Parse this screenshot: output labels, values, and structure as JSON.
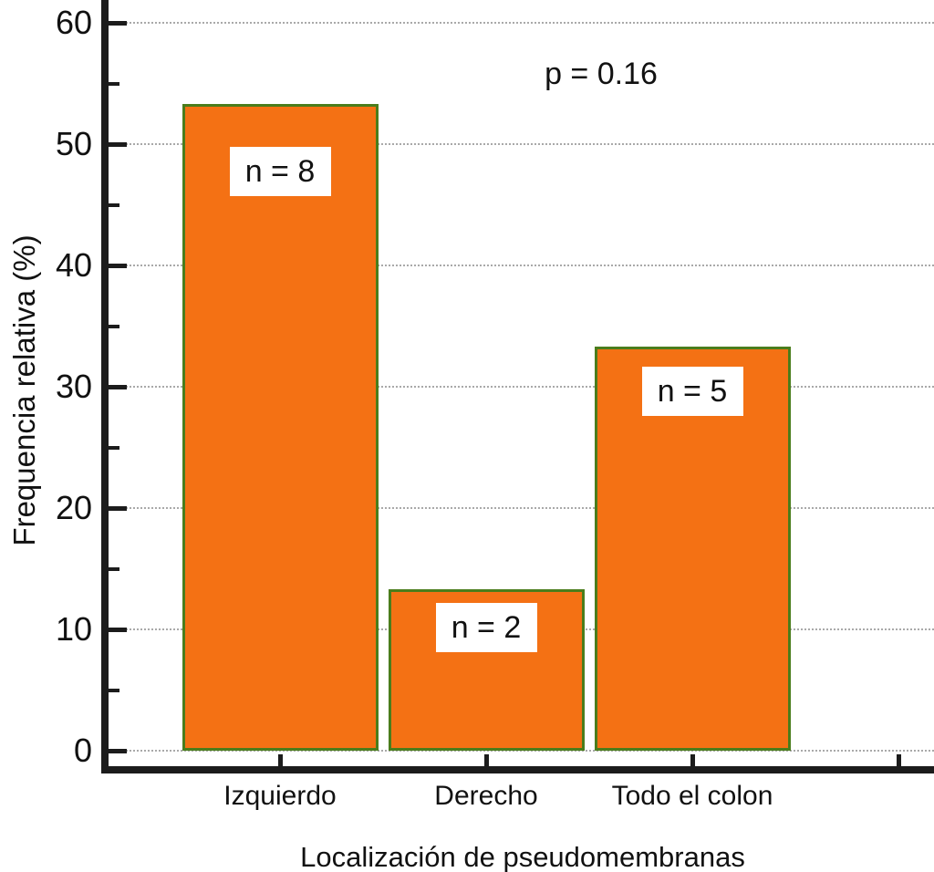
{
  "figure": {
    "background": "#ffffff"
  },
  "chart_data": {
    "type": "bar",
    "title": "",
    "categories": [
      "Izquierdo",
      "Derecho",
      "Todo el colon"
    ],
    "values": [
      53.3,
      13.3,
      33.3
    ],
    "bar_labels": [
      "n = 8",
      "n = 2",
      "n = 5"
    ],
    "annotation": "p = 0.16",
    "xlabel": "Localización de pseudomembranas",
    "ylabel": "Frequencia relativa (%)",
    "ylim": [
      0,
      60
    ],
    "ytick_major": [
      0,
      10,
      20,
      30,
      40,
      50,
      60
    ],
    "ytick_minor": [
      5,
      15,
      25,
      35,
      45,
      55
    ],
    "extra_unlabeled_xtick": true,
    "grid": "horizontal-dotted-at-major-ticks",
    "legend": null,
    "colors": {
      "bar_fill": "#f47114",
      "bar_border": "#4a7d1c",
      "axis": "#1c1c1c",
      "grid": "#a9a9a9",
      "label_box_bg": "#ffffff",
      "text": "#111111"
    }
  }
}
